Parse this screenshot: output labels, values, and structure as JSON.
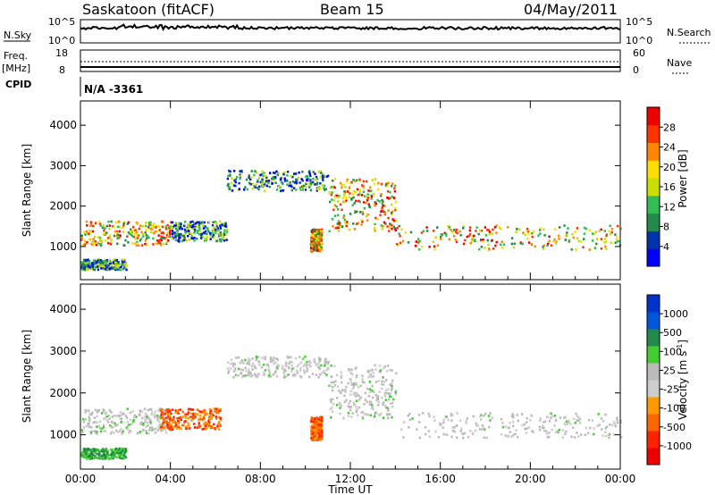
{
  "header": {
    "station": "Saskatoon (fitACF)",
    "beam": "Beam 15",
    "date": "04/May/2011"
  },
  "top_panels": {
    "nsky_label": "N.Sky",
    "nsky_ticks": [
      "10^5",
      "10^0"
    ],
    "nsearch_label": "N.Search",
    "nsearch_ticks": [
      "10^5",
      "10^0"
    ],
    "freq_label": "Freq.",
    "freq_unit": "[MHz]",
    "freq_ticks": [
      "18",
      "8"
    ],
    "nave_label": "Nave",
    "nave_ticks": [
      "60",
      "0"
    ],
    "cpid_label": "CPID",
    "cpid_value": "N/A -3361"
  },
  "colors": {
    "power_scale": [
      "#0000ff",
      "#0033aa",
      "#228a4a",
      "#33bb55",
      "#ccdd00",
      "#ffdd00",
      "#ff8800",
      "#ff3300",
      "#ee0000"
    ],
    "velocity_scale": [
      "#0033cc",
      "#0055dd",
      "#228a4a",
      "#44cc33",
      "#bbbbbb",
      "#cccccc",
      "#ff9900",
      "#ff6600",
      "#ff2200",
      "#ee0000"
    ]
  },
  "chart_data": [
    {
      "type": "heatmap",
      "name": "power",
      "xlabel": "",
      "ylabel": "Slant Range [km]",
      "yticks": [
        "1000",
        "2000",
        "3000",
        "4000"
      ],
      "xticks": [],
      "colorbar_label": "Power [dB]",
      "colorbar_ticks": [
        "4",
        "8",
        "12",
        "16",
        "20",
        "24",
        "28"
      ],
      "xlim_hours": [
        0,
        24
      ],
      "ylim_km": [
        180,
        4600
      ],
      "features": [
        {
          "t0": 0.0,
          "t1": 4.0,
          "r0": 1050,
          "r1": 1650,
          "level": "high"
        },
        {
          "t0": 4.0,
          "t1": 6.5,
          "r0": 1150,
          "r1": 1650,
          "level": "med"
        },
        {
          "t0": 6.5,
          "t1": 11.0,
          "r0": 2400,
          "r1": 2900,
          "level": "med"
        },
        {
          "t0": 11.0,
          "t1": 14.0,
          "r0": 1400,
          "r1": 2700,
          "level": "high"
        },
        {
          "t0": 14.0,
          "t1": 24.0,
          "r0": 950,
          "r1": 1550,
          "level": "high"
        },
        {
          "t0": 0.0,
          "t1": 2.0,
          "r0": 450,
          "r1": 700,
          "level": "med"
        },
        {
          "t0": 10.2,
          "t1": 10.7,
          "r0": 900,
          "r1": 1450,
          "level": "high"
        }
      ]
    },
    {
      "type": "heatmap",
      "name": "velocity",
      "xlabel": "Time UT",
      "ylabel": "Slant Range [km]",
      "yticks": [
        "1000",
        "2000",
        "3000",
        "4000"
      ],
      "xticks": [
        "00:00",
        "04:00",
        "08:00",
        "12:00",
        "16:00",
        "20:00",
        "00:00"
      ],
      "colorbar_label": "Velocity [m s",
      "colorbar_unit_sup": "-1",
      "colorbar_unit_end": "]",
      "colorbar_ticks": [
        "1000",
        "500",
        "100",
        "25",
        "-25",
        "-100",
        "-500",
        "-1000"
      ],
      "xlim_hours": [
        0,
        24
      ],
      "ylim_km": [
        180,
        4600
      ],
      "features": [
        {
          "t0": 0.0,
          "t1": 4.0,
          "r0": 1050,
          "r1": 1650,
          "level": "grey"
        },
        {
          "t0": 3.5,
          "t1": 6.2,
          "r0": 1150,
          "r1": 1650,
          "level": "orange"
        },
        {
          "t0": 6.5,
          "t1": 11.0,
          "r0": 2400,
          "r1": 2900,
          "level": "grey"
        },
        {
          "t0": 11.0,
          "t1": 14.0,
          "r0": 1400,
          "r1": 2700,
          "level": "grey"
        },
        {
          "t0": 14.0,
          "t1": 24.0,
          "r0": 950,
          "r1": 1550,
          "level": "grey"
        },
        {
          "t0": 0.0,
          "t1": 2.0,
          "r0": 450,
          "r1": 700,
          "level": "green"
        },
        {
          "t0": 10.2,
          "t1": 10.7,
          "r0": 900,
          "r1": 1450,
          "level": "orange"
        }
      ]
    }
  ]
}
